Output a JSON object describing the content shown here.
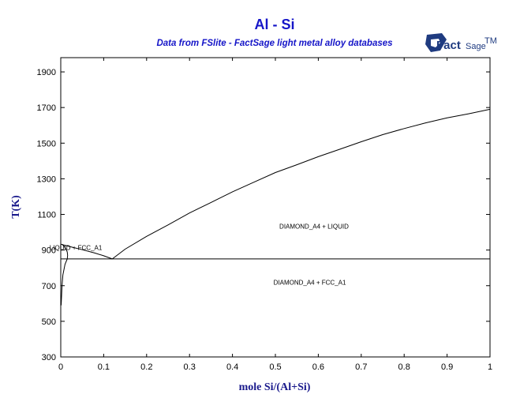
{
  "header": {
    "title": "Al - Si",
    "subtitle": "Data from FSlite - FactSage light metal alloy databases"
  },
  "logo": {
    "word_main": "Fact",
    "word_sub": "Sage",
    "mark": "TM",
    "icon": "factsage-logo-icon",
    "color": "#1f3b80"
  },
  "colors": {
    "title": "#1515c8",
    "axis_label": "#1a1a8c",
    "lines": "#000000"
  },
  "chart_data": {
    "type": "line",
    "title": "Al - Si",
    "subtitle": "Data from FSlite - FactSage light metal alloy databases",
    "xlabel": "mole Si/(Al+Si)",
    "ylabel": "T(K)",
    "xlim": [
      0,
      1
    ],
    "ylim": [
      300,
      1980
    ],
    "x_ticks": [
      "0",
      "0.1",
      "0.2",
      "0.3",
      "0.4",
      "0.5",
      "0.6",
      "0.7",
      "0.8",
      "0.9",
      "1"
    ],
    "x_tick_values": [
      0,
      0.1,
      0.2,
      0.3,
      0.4,
      0.5,
      0.6,
      0.7,
      0.8,
      0.9,
      1
    ],
    "y_ticks": [
      "300",
      "500",
      "700",
      "900",
      "1100",
      "1300",
      "1500",
      "1700",
      "1900"
    ],
    "y_tick_values": [
      300,
      500,
      700,
      900,
      1100,
      1300,
      1500,
      1700,
      1900
    ],
    "grid": false,
    "series": [
      {
        "values_x": [
          0,
          0.02,
          0.05,
          0.08,
          0.1,
          0.12
        ],
        "values_y": [
          933,
          920,
          902,
          883,
          868,
          850
        ]
      },
      {
        "values_x": [
          0.12,
          0.15,
          0.2,
          0.25,
          0.3,
          0.35,
          0.4,
          0.45,
          0.5,
          0.55,
          0.6,
          0.65,
          0.7,
          0.75,
          0.8,
          0.85,
          0.9,
          0.95,
          1.0
        ],
        "values_y": [
          850,
          905,
          977,
          1041,
          1108,
          1167,
          1227,
          1281,
          1335,
          1379,
          1424,
          1466,
          1508,
          1548,
          1582,
          1614,
          1642,
          1665,
          1690
        ]
      },
      {
        "values_x": [
          0,
          1
        ],
        "values_y": [
          850,
          850
        ]
      },
      {
        "values_x": [
          0.003,
          0.01,
          0.015,
          0.016,
          0.015
        ],
        "values_y": [
          933,
          915,
          890,
          870,
          850
        ]
      },
      {
        "values_x": [
          0.015,
          0.01,
          0.005,
          0.003,
          0.002,
          0.001
        ],
        "values_y": [
          850,
          820,
          760,
          700,
          650,
          590
        ]
      }
    ],
    "annotations": [
      {
        "text": "DIAMOND_A4 + LIQUID",
        "x": 0.59,
        "y": 1020
      },
      {
        "text": "LIQUID + FCC_A1",
        "x": 0.035,
        "y": 900
      },
      {
        "text": "DIAMOND_A4 + FCC_A1",
        "x": 0.58,
        "y": 705
      }
    ]
  }
}
